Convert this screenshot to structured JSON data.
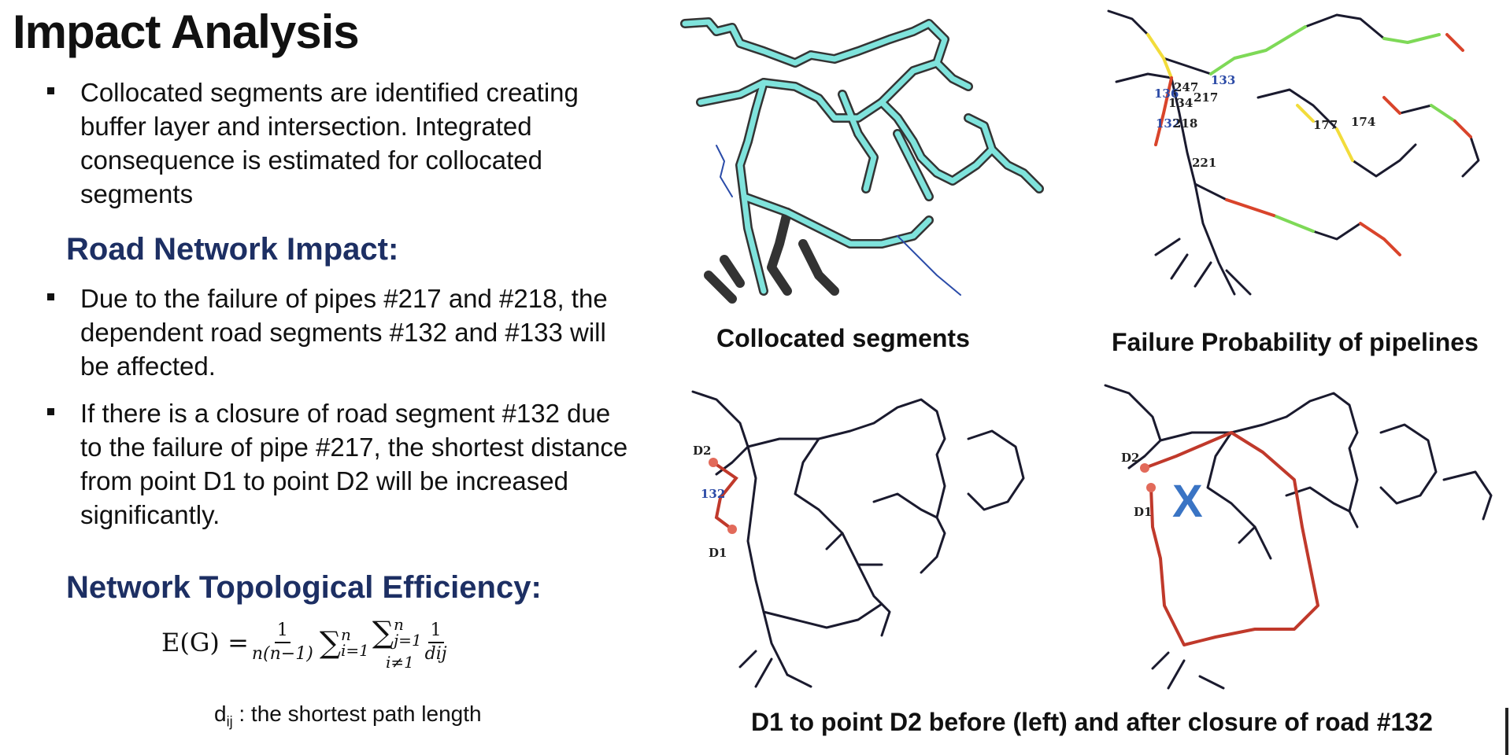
{
  "title": "Impact Analysis",
  "intro_bullet": "Collocated segments are identified creating buffer layer and intersection. Integrated consequence is estimated for collocated segments",
  "road_heading": "Road Network Impact:",
  "road_bullets": [
    "Due to the failure of pipes #217 and #218, the dependent road segments  #132 and #133 will be affected.",
    "If there is a closure of road segment #132 due to the failure of pipe #217, the shortest distance from point D1 to point D2 will be increased significantly."
  ],
  "efficiency_heading": "Network Topological Efficiency:",
  "formula": {
    "lhs": "E(G) =",
    "frac_num": "1",
    "frac_den": "n(n−1)",
    "sum1": "∑",
    "sum1_top": "n",
    "sum1_bottom": "i=1",
    "sum2": "∑",
    "sum2_top": "n",
    "sum2_bottom": "j=1",
    "sum2_cond": "i≠1",
    "term_num": "1",
    "term_den": "dij"
  },
  "definition": {
    "symbol": "d",
    "subscript": "ij",
    "text": " : the shortest path length"
  },
  "captions": {
    "collocated": "Collocated segments",
    "failure_probability": "Failure Probability of pipelines",
    "route": "D1 to point D2 before (left) and after closure of road #132"
  },
  "map_labels": {
    "p247": "247",
    "p217": "217",
    "p133": "133",
    "p136": "136",
    "p134": "134",
    "p132": "132",
    "p218": "218",
    "p221": "221",
    "p177": "177",
    "p174": "174",
    "d1": "D1",
    "d2": "D2",
    "road132": "132",
    "closure_mark": "X"
  },
  "colors": {
    "heading": "#1d2f63",
    "road": "#1a1a2e",
    "buffer_fill": "#7fe3dc",
    "route_red": "#c0392b",
    "fail_green": "#7ed957",
    "fail_yellow": "#f2dc3b",
    "fail_red": "#d9442b",
    "closure_x": "#3a74c4"
  }
}
